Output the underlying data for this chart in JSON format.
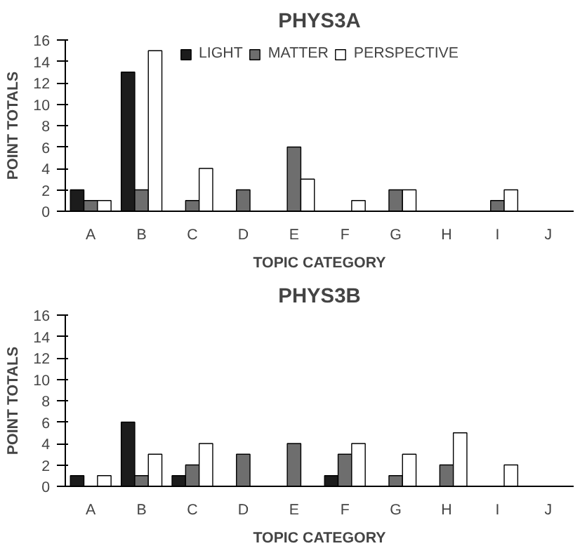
{
  "chart_data": [
    {
      "type": "bar",
      "title": "PHYS3A",
      "xlabel": "TOPIC CATEGORY",
      "ylabel": "POINT TOTALS",
      "categories": [
        "A",
        "B",
        "C",
        "D",
        "E",
        "F",
        "G",
        "H",
        "I",
        "J"
      ],
      "ylim": [
        0,
        16
      ],
      "yticks": [
        0,
        2,
        4,
        6,
        8,
        10,
        12,
        14,
        16
      ],
      "grid": false,
      "legend": "top",
      "series": [
        {
          "name": "LIGHT",
          "color": "#1c1c1c",
          "values": [
            2,
            13,
            null,
            null,
            null,
            null,
            null,
            null,
            null,
            null
          ]
        },
        {
          "name": "MATTER",
          "color": "#6e6e6e",
          "values": [
            1,
            2,
            1,
            2,
            6,
            null,
            2,
            null,
            1,
            null
          ]
        },
        {
          "name": "PERSPECTIVE",
          "color": "#ffffff",
          "values": [
            1,
            15,
            4,
            null,
            3,
            1,
            2,
            null,
            2,
            null
          ]
        }
      ]
    },
    {
      "type": "bar",
      "title": "PHYS3B",
      "xlabel": "TOPIC CATEGORY",
      "ylabel": "POINT TOTALS",
      "categories": [
        "A",
        "B",
        "C",
        "D",
        "E",
        "F",
        "G",
        "H",
        "I",
        "J"
      ],
      "ylim": [
        0,
        16
      ],
      "yticks": [
        0,
        2,
        4,
        6,
        8,
        10,
        12,
        14,
        16
      ],
      "grid": false,
      "series": [
        {
          "color": "#1c1c1c",
          "values": [
            1,
            6,
            1,
            null,
            null,
            1,
            null,
            null,
            null,
            null
          ]
        },
        {
          "color": "#6e6e6e",
          "values": [
            null,
            1,
            2,
            3,
            4,
            3,
            1,
            2,
            null,
            null
          ]
        },
        {
          "color": "#ffffff",
          "values": [
            1,
            3,
            4,
            null,
            null,
            4,
            3,
            5,
            2,
            null
          ]
        }
      ]
    }
  ]
}
